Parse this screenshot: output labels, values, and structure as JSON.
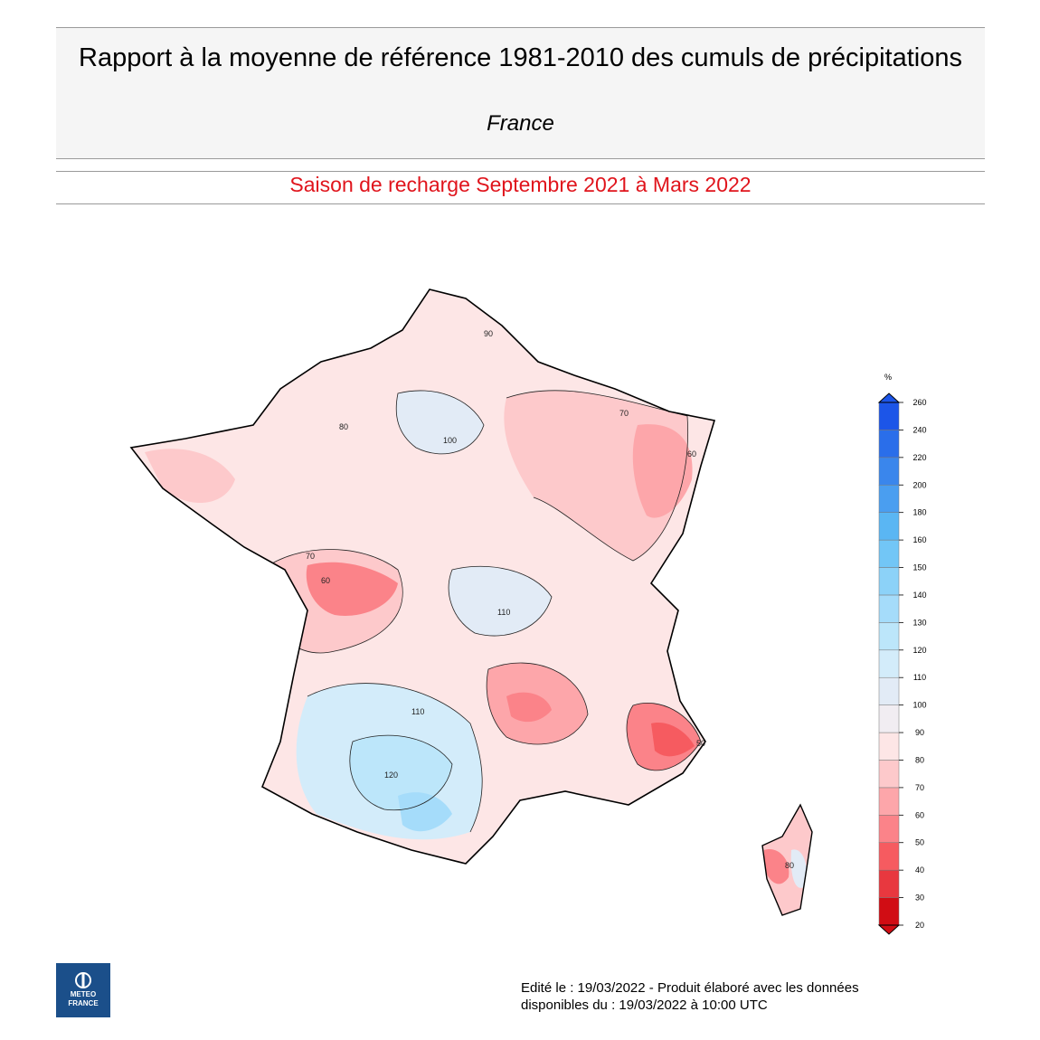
{
  "header": {
    "title": "Rapport à la moyenne de référence 1981-2010 des cumuls de précipitations",
    "subtitle": "France",
    "period": "Saison de recharge  Septembre 2021 à Mars 2022"
  },
  "legend": {
    "unit": "%",
    "levels": [
      20,
      30,
      40,
      50,
      60,
      70,
      80,
      90,
      100,
      110,
      120,
      130,
      140,
      150,
      160,
      180,
      200,
      220,
      240,
      260
    ],
    "colors": [
      "#d10d14",
      "#e8383f",
      "#f65b60",
      "#fb8389",
      "#fda6aa",
      "#fdc9cb",
      "#fde6e6",
      "#f1edf2",
      "#e2ebf6",
      "#d3ecfa",
      "#bce6fa",
      "#a5dcfa",
      "#8cd2f8",
      "#72c6f6",
      "#5ab6f3",
      "#4a9ef0",
      "#3a86ec",
      "#2a6eea",
      "#1c55e8"
    ]
  },
  "map": {
    "region": "France",
    "contour_labels": [
      {
        "text": "90",
        "near": "Hauts-de-France"
      },
      {
        "text": "80",
        "near": "Normandie"
      },
      {
        "text": "100",
        "near": "Île-de-France"
      },
      {
        "text": "70",
        "near": "Lorraine"
      },
      {
        "text": "60",
        "near": "Alsace"
      },
      {
        "text": "60",
        "near": "Poitou-Charentes"
      },
      {
        "text": "70",
        "near": "Vendée"
      },
      {
        "text": "110",
        "near": "Auvergne"
      },
      {
        "text": "110",
        "near": "Midi-Pyrénées"
      },
      {
        "text": "120",
        "near": "Pyrénées"
      },
      {
        "text": "50",
        "near": "Provence"
      },
      {
        "text": "80",
        "near": "Corse"
      }
    ]
  },
  "logo": {
    "line1": "METEO",
    "line2": "FRANCE"
  },
  "footer": {
    "line1": "Edité le : 19/03/2022 - Produit élaboré avec les données",
    "line2": "disponibles du : 19/03/2022 à 10:00 UTC"
  }
}
